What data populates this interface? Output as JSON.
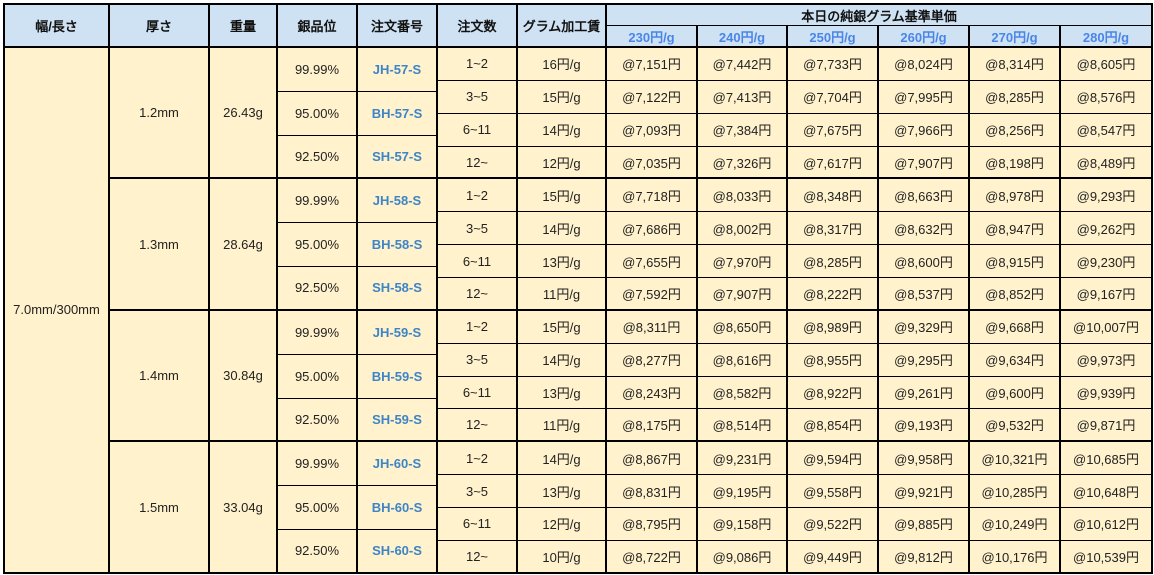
{
  "header": {
    "width_length": "幅/長さ",
    "thickness": "厚さ",
    "weight": "重量",
    "purity": "銀品位",
    "order_no": "注文番号",
    "quantity": "注文数",
    "processing_fee": "グラム加工賃",
    "base_price_title": "本日の純銀グラム基準単価",
    "base_prices": [
      "230円/g",
      "240円/g",
      "250円/g",
      "260円/g",
      "270円/g",
      "280円/g"
    ]
  },
  "colors": {
    "header_bg": "#cfe2f3",
    "body_bg": "#fff2cc",
    "price_header_text": "#4a86e8",
    "code_text": "#3d85c6"
  },
  "width_length": "7.0mm/300mm",
  "groups": [
    {
      "thickness": "1.2mm",
      "weight": "26.43g",
      "variants": [
        {
          "purity": "99.99%",
          "code": "JH-57-S"
        },
        {
          "purity": "95.00%",
          "code": "BH-57-S"
        },
        {
          "purity": "92.50%",
          "code": "SH-57-S"
        }
      ],
      "tiers": [
        {
          "qty": "1~2",
          "fee": "16円/g",
          "prices": [
            "@7,151円",
            "@7,442円",
            "@7,733円",
            "@8,024円",
            "@8,314円",
            "@8,605円"
          ]
        },
        {
          "qty": "3~5",
          "fee": "15円/g",
          "prices": [
            "@7,122円",
            "@7,413円",
            "@7,704円",
            "@7,995円",
            "@8,285円",
            "@8,576円"
          ]
        },
        {
          "qty": "6~11",
          "fee": "14円/g",
          "prices": [
            "@7,093円",
            "@7,384円",
            "@7,675円",
            "@7,966円",
            "@8,256円",
            "@8,547円"
          ]
        },
        {
          "qty": "12~",
          "fee": "12円/g",
          "prices": [
            "@7,035円",
            "@7,326円",
            "@7,617円",
            "@7,907円",
            "@8,198円",
            "@8,489円"
          ]
        }
      ]
    },
    {
      "thickness": "1.3mm",
      "weight": "28.64g",
      "variants": [
        {
          "purity": "99.99%",
          "code": "JH-58-S"
        },
        {
          "purity": "95.00%",
          "code": "BH-58-S"
        },
        {
          "purity": "92.50%",
          "code": "SH-58-S"
        }
      ],
      "tiers": [
        {
          "qty": "1~2",
          "fee": "15円/g",
          "prices": [
            "@7,718円",
            "@8,033円",
            "@8,348円",
            "@8,663円",
            "@8,978円",
            "@9,293円"
          ]
        },
        {
          "qty": "3~5",
          "fee": "14円/g",
          "prices": [
            "@7,686円",
            "@8,002円",
            "@8,317円",
            "@8,632円",
            "@8,947円",
            "@9,262円"
          ]
        },
        {
          "qty": "6~11",
          "fee": "13円/g",
          "prices": [
            "@7,655円",
            "@7,970円",
            "@8,285円",
            "@8,600円",
            "@8,915円",
            "@9,230円"
          ]
        },
        {
          "qty": "12~",
          "fee": "11円/g",
          "prices": [
            "@7,592円",
            "@7,907円",
            "@8,222円",
            "@8,537円",
            "@8,852円",
            "@9,167円"
          ]
        }
      ]
    },
    {
      "thickness": "1.4mm",
      "weight": "30.84g",
      "variants": [
        {
          "purity": "99.99%",
          "code": "JH-59-S"
        },
        {
          "purity": "95.00%",
          "code": "BH-59-S"
        },
        {
          "purity": "92.50%",
          "code": "SH-59-S"
        }
      ],
      "tiers": [
        {
          "qty": "1~2",
          "fee": "15円/g",
          "prices": [
            "@8,311円",
            "@8,650円",
            "@8,989円",
            "@9,329円",
            "@9,668円",
            "@10,007円"
          ]
        },
        {
          "qty": "3~5",
          "fee": "14円/g",
          "prices": [
            "@8,277円",
            "@8,616円",
            "@8,955円",
            "@9,295円",
            "@9,634円",
            "@9,973円"
          ]
        },
        {
          "qty": "6~11",
          "fee": "13円/g",
          "prices": [
            "@8,243円",
            "@8,582円",
            "@8,922円",
            "@9,261円",
            "@9,600円",
            "@9,939円"
          ]
        },
        {
          "qty": "12~",
          "fee": "11円/g",
          "prices": [
            "@8,175円",
            "@8,514円",
            "@8,854円",
            "@9,193円",
            "@9,532円",
            "@9,871円"
          ]
        }
      ]
    },
    {
      "thickness": "1.5mm",
      "weight": "33.04g",
      "variants": [
        {
          "purity": "99.99%",
          "code": "JH-60-S"
        },
        {
          "purity": "95.00%",
          "code": "BH-60-S"
        },
        {
          "purity": "92.50%",
          "code": "SH-60-S"
        }
      ],
      "tiers": [
        {
          "qty": "1~2",
          "fee": "14円/g",
          "prices": [
            "@8,867円",
            "@9,231円",
            "@9,594円",
            "@9,958円",
            "@10,321円",
            "@10,685円"
          ]
        },
        {
          "qty": "3~5",
          "fee": "13円/g",
          "prices": [
            "@8,831円",
            "@9,195円",
            "@9,558円",
            "@9,921円",
            "@10,285円",
            "@10,648円"
          ]
        },
        {
          "qty": "6~11",
          "fee": "12円/g",
          "prices": [
            "@8,795円",
            "@9,158円",
            "@9,522円",
            "@9,885円",
            "@10,249円",
            "@10,612円"
          ]
        },
        {
          "qty": "12~",
          "fee": "10円/g",
          "prices": [
            "@8,722円",
            "@9,086円",
            "@9,449円",
            "@9,812円",
            "@10,176円",
            "@10,539円"
          ]
        }
      ]
    }
  ]
}
